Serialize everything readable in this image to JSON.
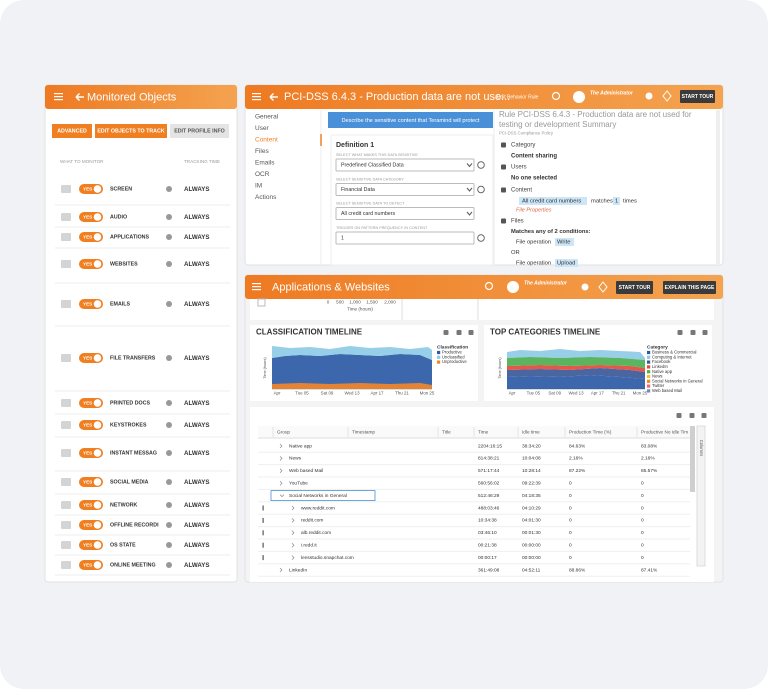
{
  "monitored_objects": {
    "title": "Monitored Objects",
    "buttons": [
      "ADVANCED",
      "EDIT OBJECTS TO TRACK",
      "EDIT PROFILE INFO"
    ],
    "columns": [
      "WHAT TO MONITOR",
      "TRACKING TIME"
    ],
    "rows": [
      {
        "name": "SCREEN",
        "toggle": "YES",
        "tracking": "ALWAYS"
      },
      {
        "name": "AUDIO",
        "toggle": "YES",
        "tracking": "ALWAYS"
      },
      {
        "name": "APPLICATIONS",
        "toggle": "YES",
        "tracking": "ALWAYS"
      },
      {
        "name": "WEBSITES",
        "toggle": "YES",
        "tracking": "ALWAYS"
      },
      {
        "name": "EMAILS",
        "toggle": "YES",
        "tracking": "ALWAYS"
      },
      {
        "name": "FILE TRANSFERS",
        "toggle": "YES",
        "tracking": "ALWAYS"
      },
      {
        "name": "PRINTED DOCS",
        "toggle": "YES",
        "tracking": "ALWAYS"
      },
      {
        "name": "KEYSTROKES",
        "toggle": "YES",
        "tracking": "ALWAYS"
      },
      {
        "name": "INSTANT MESSAG",
        "toggle": "YES",
        "tracking": "ALWAYS"
      },
      {
        "name": "SOCIAL MEDIA",
        "toggle": "YES",
        "tracking": "ALWAYS"
      },
      {
        "name": "NETWORK",
        "toggle": "YES",
        "tracking": "ALWAYS"
      },
      {
        "name": "OFFLINE RECORDI",
        "toggle": "YES",
        "tracking": "ALWAYS"
      },
      {
        "name": "OS STATE",
        "toggle": "YES",
        "tracking": "ALWAYS"
      },
      {
        "name": "ONLINE MEETING",
        "toggle": "YES",
        "tracking": "ALWAYS"
      }
    ]
  },
  "rule_editor": {
    "title": "PCI-DSS 6.4.3 - Production data are not use...",
    "subtitle": "Edit Behavior Rule",
    "user": "The Administrator",
    "tour_button": "START TOUR",
    "nav": [
      "General",
      "User",
      "Content",
      "Files",
      "Emails",
      "OCR",
      "IM",
      "Actions"
    ],
    "banner": "Describe the sensitive content that Teramind will protect",
    "definition": "Definition 1",
    "fields": [
      {
        "label": "SELECT WHAT MAKES THIS DATA SENSITIVE",
        "value": "Predefined Classified Data"
      },
      {
        "label": "SELECT SENSITIVE DATA CATEGORY",
        "value": "Financial Data"
      },
      {
        "label": "SELECT SENSITIVE DATA TO DETECT",
        "value": "All credit card numbers"
      },
      {
        "label": "TRIGGER ON PATTERN FREQUENCY IN CONTENT",
        "value": "1"
      }
    ],
    "summary": {
      "title": [
        "Rule PCI-DSS 6.4.3 - Production data are not used for",
        "testing or development Summary"
      ],
      "policy": "PCI-DSS Compliance Policy",
      "category_label": "Category",
      "category": "Content sharing",
      "users_label": "Users",
      "users": "No one selected",
      "content_label": "Content",
      "content_match": [
        "All credit card numbers",
        "matches",
        "1",
        "times"
      ],
      "file_properties": "File Properties",
      "files_label": "Files",
      "files_condition": "Matches any of 2 conditions:",
      "file_ops": [
        {
          "label": "File operation",
          "value": "Write"
        },
        {
          "label": "File operation",
          "value": "Upload"
        }
      ],
      "or": "OR"
    }
  },
  "apps_websites": {
    "title": "Applications & Websites",
    "user": "The Administrator",
    "buttons": [
      "START TOUR",
      "EXPLAIN THIS PAGE"
    ],
    "top_axis": {
      "ticks": [
        "0",
        "500",
        "1,000",
        "1,500",
        "2,000"
      ],
      "label": "Time (hours)"
    },
    "classification_timeline": {
      "title": "CLASSIFICATION TIMELINE",
      "y_label": "Time (hours)",
      "x_labels": [
        "Apr",
        "Tue 05",
        "Sat 09",
        "Wed 13",
        "Apr 17",
        "Thu 21",
        "Mon 25"
      ],
      "legend_title": "Classification",
      "legend": [
        {
          "name": "Productive",
          "color": "#2d5aa6"
        },
        {
          "name": "Unclassified",
          "color": "#8ecae6"
        },
        {
          "name": "Unproductive",
          "color": "#f0862a"
        }
      ]
    },
    "top_categories_timeline": {
      "title": "TOP CATEGORIES TIMELINE",
      "y_label": "Time (hours)",
      "x_labels": [
        "Apr",
        "Tue 05",
        "Sat 09",
        "Wed 13",
        "Apr 17",
        "Thu 21",
        "Mon 25"
      ],
      "legend_title": "Category",
      "legend": [
        {
          "name": "Business & Commercial",
          "color": "#2d5aa6"
        },
        {
          "name": "Computing & Internet",
          "color": "#8ecae6"
        },
        {
          "name": "Facebook",
          "color": "#3b5998"
        },
        {
          "name": "LinkedIn",
          "color": "#e2493b"
        },
        {
          "name": "Native app",
          "color": "#4caf50"
        },
        {
          "name": "News",
          "color": "#f2c230"
        },
        {
          "name": "Social Networks in General",
          "color": "#f0862a"
        },
        {
          "name": "Twitter",
          "color": "#ef6b6b"
        },
        {
          "name": "Web based Mail",
          "color": "#6a8bc4"
        }
      ]
    },
    "table": {
      "columns": [
        "Group",
        "Timestamp",
        "Title",
        "Time",
        "Idle time",
        "Production Time (%)",
        "Productive No Idle Tim"
      ],
      "side_label": "Columns",
      "rows": [
        [
          "Native app",
          "2204:16:15",
          "38:34:20",
          "84.63%",
          "83.08%"
        ],
        [
          "News",
          "814:38:21",
          "10:04:08",
          "2.16%",
          "2.16%"
        ],
        [
          "Web based Mail",
          "571:17:44",
          "10:28:14",
          "87.22%",
          "85.57%"
        ],
        [
          "YouTube",
          "560:56:02",
          "09:22:39",
          "0",
          "0"
        ],
        [
          "Social Networks in General",
          "512:46:29",
          "04:18:35",
          "0",
          "0"
        ],
        [
          "www.reddit.com",
          "488:03:46",
          "04:10:29",
          "0",
          "0"
        ],
        [
          "reddit.com",
          "10:34:38",
          "04:01:30",
          "0",
          "0"
        ],
        [
          "alb.reddit.com",
          "03:46:10",
          "00:01:30",
          "0",
          "0"
        ],
        [
          "i.redd.it",
          "00:21:38",
          "00:00:00",
          "0",
          "0"
        ],
        [
          "lensstudio.snapchat.com",
          "00:00:17",
          "00:00:00",
          "0",
          "0"
        ],
        [
          "LinkedIn",
          "361:49:08",
          "04:52:11",
          "88.86%",
          "87.41%"
        ]
      ]
    }
  }
}
